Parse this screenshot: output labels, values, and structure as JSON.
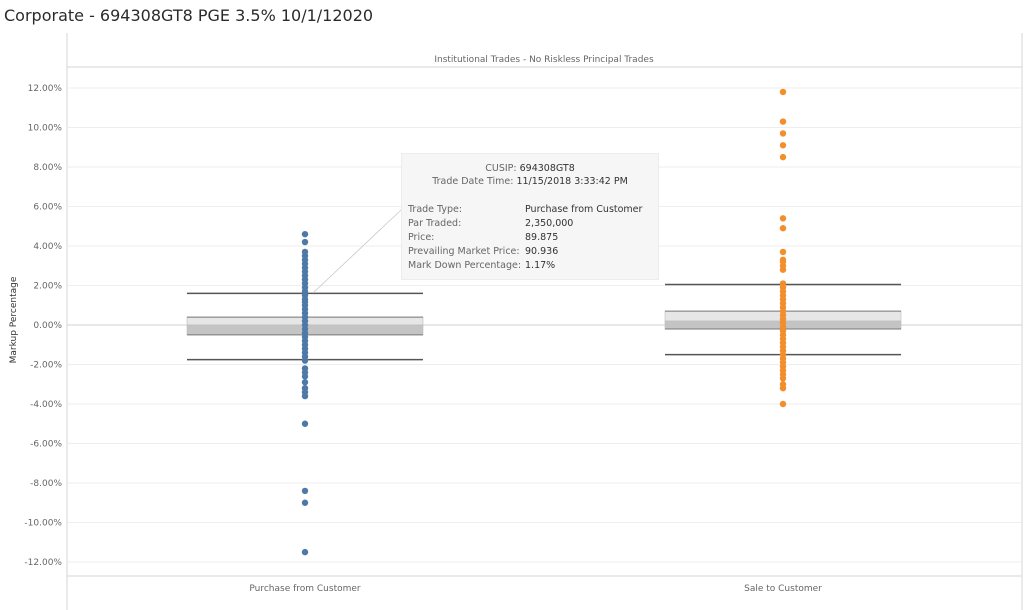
{
  "page": {
    "title": "Corporate - 694308GT8 PGE 3.5% 10/1/12020"
  },
  "tooltip": {
    "cusip_label": "CUSIP:",
    "cusip_value": "694308GT8",
    "date_label": "Trade Date Time:",
    "date_value": "11/15/2018 3:33:42 PM",
    "rows": [
      {
        "label": "Trade Type:",
        "value": "Purchase from Customer"
      },
      {
        "label": "Par Traded:",
        "value": "2,350,000"
      },
      {
        "label": "Price:",
        "value": "89.875"
      },
      {
        "label": "Prevailing Market Price:",
        "value": "90.936"
      },
      {
        "label": "Mark Down Percentage:",
        "value": "1.17%"
      }
    ]
  },
  "chart_data": {
    "type": "scatter",
    "title": "Institutional Trades - No Riskless Principal Trades",
    "xlabel": "",
    "ylabel": "Markup Percentage",
    "ylim": [
      -13,
      13
    ],
    "yticks": [
      12,
      10,
      8,
      6,
      4,
      2,
      0,
      -2,
      -4,
      -6,
      -8,
      -10,
      -12
    ],
    "ytick_labels": [
      "12.00%",
      "10.00%",
      "8.00%",
      "6.00%",
      "4.00%",
      "2.00%",
      "0.00%",
      "-2.00%",
      "-4.00%",
      "-6.00%",
      "-8.00%",
      "-10.00%",
      "-12.00%"
    ],
    "categories": [
      "Purchase from Customer",
      "Sale to Customer"
    ],
    "grid": true,
    "legend": "none",
    "series": [
      {
        "category": "Purchase from Customer",
        "color": "#4e79a7",
        "values": [
          4.6,
          4.2,
          3.7,
          3.5,
          3.3,
          3.1,
          2.9,
          2.7,
          2.5,
          2.3,
          2.1,
          1.9,
          1.7,
          1.5,
          1.3,
          1.17,
          1.0,
          0.8,
          0.6,
          0.4,
          0.2,
          0.0,
          -0.2,
          -0.4,
          -0.6,
          -0.8,
          -1.0,
          -1.2,
          -1.4,
          -1.6,
          -1.8,
          -2.2,
          -2.4,
          -2.6,
          -2.9,
          -3.2,
          -3.4,
          -3.6,
          -5.0,
          -8.4,
          -9.0,
          -11.5
        ],
        "box": {
          "whisker_high": 1.6,
          "q3": 0.4,
          "median": 0.0,
          "q1": -0.5,
          "whisker_low": -1.75
        }
      },
      {
        "category": "Sale to Customer",
        "color": "#f28e2b",
        "values": [
          11.8,
          10.3,
          9.7,
          9.1,
          8.5,
          5.4,
          4.9,
          3.7,
          3.3,
          3.2,
          3.0,
          2.8,
          2.1,
          1.9,
          1.7,
          1.5,
          1.3,
          1.1,
          0.9,
          0.7,
          0.5,
          0.3,
          0.1,
          -0.1,
          -0.3,
          -0.5,
          -0.7,
          -0.9,
          -1.1,
          -1.3,
          -1.5,
          -1.7,
          -1.9,
          -2.1,
          -2.3,
          -2.5,
          -2.7,
          -3.0,
          -3.2,
          -4.0
        ],
        "box": {
          "whisker_high": 2.05,
          "q3": 0.7,
          "median": 0.2,
          "q1": -0.2,
          "whisker_low": -1.5
        }
      }
    ]
  },
  "colors": {
    "purchase": "#4e79a7",
    "sale": "#f28e2b",
    "box_fill": "#cfcfcf",
    "whisker": "#555555"
  }
}
